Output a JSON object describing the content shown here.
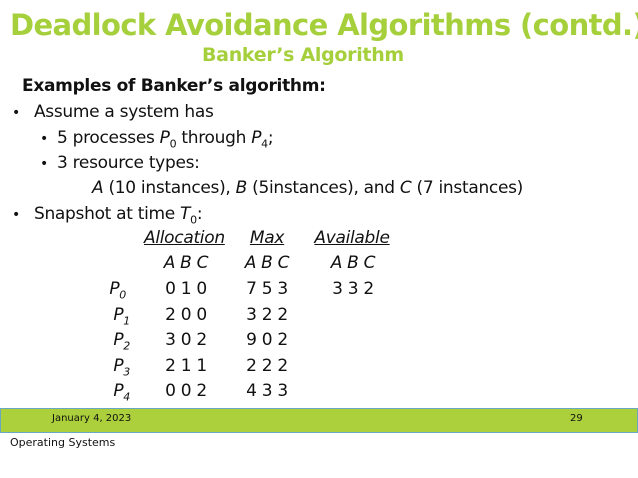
{
  "title": "Deadlock Avoidance Algorithms (contd.)",
  "subtitle": "Banker’s Algorithm",
  "heading": "Examples of Banker’s algorithm:",
  "bullets": {
    "b1": "Assume a system has",
    "b1a_pre": "5 processes ",
    "b1a_p": "P",
    "b1a_s0": "0",
    "b1a_mid": " through ",
    "b1a_p2": "P",
    "b1a_s4": "4",
    "b1a_end": ";",
    "b1b": "3 resource types:",
    "res_a": "A",
    "res_a_t": " (10 instances), ",
    "res_b": "B",
    "res_b_t": " (5instances), and ",
    "res_c": "C",
    "res_c_t": " (7 instances)",
    "b2_pre": "Snapshot at time ",
    "b2_t": "T",
    "b2_s": "0",
    "b2_end": ":"
  },
  "table": {
    "headers": [
      "Allocation",
      "Max",
      "Available"
    ],
    "subheaders": [
      "A B C",
      "A B C",
      "A B C"
    ],
    "rows": [
      {
        "p": "P",
        "i": "0",
        "alloc": "0 1 0",
        "max": "7 5 3",
        "avail": "3 3 2"
      },
      {
        "p": "P",
        "i": "1",
        "alloc": "2 0 0",
        "max": "3 2 2"
      },
      {
        "p": "P",
        "i": "2",
        "alloc": "3 0 2",
        "max": "9 0 2"
      },
      {
        "p": "P",
        "i": "3",
        "alloc": "2 1 1",
        "max": "2 2 2"
      },
      {
        "p": "P",
        "i": "4",
        "alloc": "0 0 2",
        "max": "4 3 3"
      }
    ]
  },
  "footer": {
    "date": "January 4, 2023",
    "page": "29",
    "course": "Operating Systems"
  },
  "colors": {
    "accent": "#a6cf3c",
    "footer_bar": "#abd03c"
  }
}
